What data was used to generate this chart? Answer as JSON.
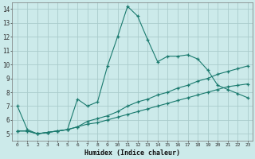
{
  "xlabel": "Humidex (Indice chaleur)",
  "bg_color": "#cceaea",
  "grid_color": "#aacccc",
  "line_color": "#1a7a6e",
  "xlim": [
    -0.5,
    23.5
  ],
  "ylim": [
    4.5,
    14.5
  ],
  "xtick_labels": [
    "0",
    "1",
    "2",
    "3",
    "4",
    "5",
    "6",
    "7",
    "8",
    "9",
    "10",
    "11",
    "12",
    "13",
    "14",
    "15",
    "16",
    "17",
    "18",
    "19",
    "20",
    "21",
    "22",
    "23"
  ],
  "ytick_labels": [
    "5",
    "6",
    "7",
    "8",
    "9",
    "10",
    "11",
    "12",
    "13",
    "14"
  ],
  "xticks": [
    0,
    1,
    2,
    3,
    4,
    5,
    6,
    7,
    8,
    9,
    10,
    11,
    12,
    13,
    14,
    15,
    16,
    17,
    18,
    19,
    20,
    21,
    22,
    23
  ],
  "yticks": [
    5,
    6,
    7,
    8,
    9,
    10,
    11,
    12,
    13,
    14
  ],
  "series": [
    {
      "x": [
        0,
        1,
        2,
        3,
        4,
        5,
        6,
        7,
        8,
        9,
        10,
        11,
        12,
        13,
        14,
        15,
        16,
        17,
        18,
        19,
        20,
        21,
        22,
        23
      ],
      "y": [
        7.0,
        5.3,
        5.0,
        5.1,
        5.2,
        5.3,
        7.5,
        7.0,
        7.3,
        9.9,
        12.0,
        14.2,
        13.5,
        11.8,
        10.2,
        10.6,
        10.6,
        10.7,
        10.4,
        9.6,
        8.5,
        8.2,
        7.9,
        7.6
      ]
    },
    {
      "x": [
        0,
        1,
        2,
        3,
        4,
        5,
        6,
        7,
        8,
        9,
        10,
        11,
        12,
        13,
        14,
        15,
        16,
        17,
        18,
        19,
        20,
        21,
        22,
        23
      ],
      "y": [
        5.2,
        5.2,
        5.0,
        5.1,
        5.2,
        5.3,
        5.5,
        5.9,
        6.1,
        6.3,
        6.6,
        7.0,
        7.3,
        7.5,
        7.8,
        8.0,
        8.3,
        8.5,
        8.8,
        9.0,
        9.3,
        9.5,
        9.7,
        9.9
      ]
    },
    {
      "x": [
        0,
        1,
        2,
        3,
        4,
        5,
        6,
        7,
        8,
        9,
        10,
        11,
        12,
        13,
        14,
        15,
        16,
        17,
        18,
        19,
        20,
        21,
        22,
        23
      ],
      "y": [
        5.2,
        5.2,
        5.0,
        5.1,
        5.2,
        5.3,
        5.5,
        5.7,
        5.8,
        6.0,
        6.2,
        6.4,
        6.6,
        6.8,
        7.0,
        7.2,
        7.4,
        7.6,
        7.8,
        8.0,
        8.2,
        8.4,
        8.5,
        8.6
      ]
    }
  ]
}
